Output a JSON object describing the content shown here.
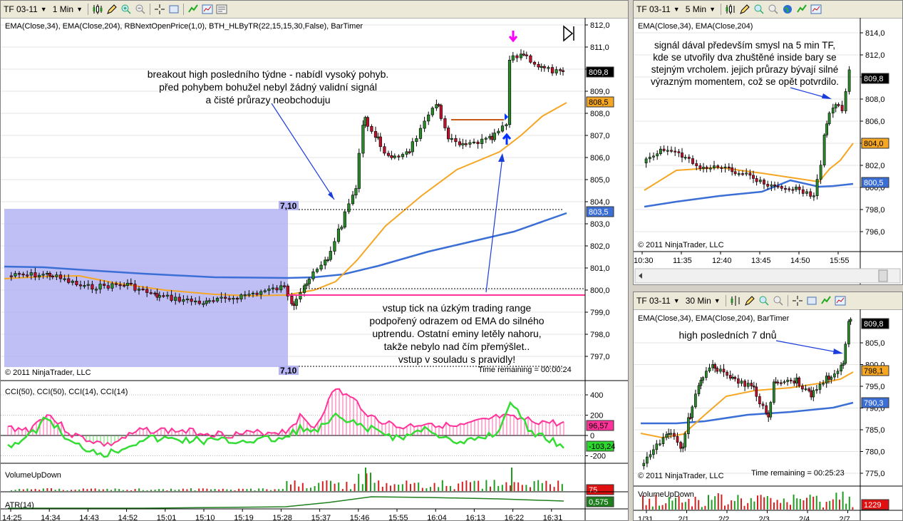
{
  "main": {
    "toolbar": {
      "instrument": "TF 03-11",
      "interval": "1 Min"
    },
    "indicators_label": "EMA(Close,34), EMA(Close,204), RBNextOpenPrice(1,0), BTH_HLByTR(22,15,15,30,False), BarTimer",
    "copyright": "© 2011 NinjaTrader, LLC",
    "time_remaining": "Time remaining = 00:00:24",
    "range_label_top": "7,10",
    "range_label_bottom": "7,10",
    "annotation_top": [
      "breakout high posledního týdne - nabídl vysoký pohyb.",
      "před pohybem bohužel nebyl žádný validní signál",
      "a čisté průrazy neobchoduju"
    ],
    "annotation_bottom": [
      "vstup tick na úzkým trading range",
      "podpořený odrazem od EMA do silného",
      "uptrendu. Ostatní eminy letěly nahoru,",
      "takže nebylo nad čím přemýšlet..",
      "vstup v souladu s pravidly!"
    ],
    "cci_label": "CCI(50), CCI(50), CCI(14), CCI(14)",
    "volume_label": "VolumeUpDown",
    "atr_label": "ATR(14)",
    "price_ticks": [
      "812,0",
      "811,0",
      "810,0",
      "809,0",
      "808,0",
      "807,0",
      "806,0",
      "805,0",
      "804,0",
      "803,0",
      "802,0",
      "801,0",
      "800,0",
      "799,0",
      "798,0",
      "797,0"
    ],
    "price_badges": {
      "last": "809,8",
      "ema34": "808,5",
      "ema204": "803,5"
    },
    "cci_ticks": [
      "400",
      "200",
      "0",
      "-200"
    ],
    "cci_badges": {
      "a": "96,57",
      "b": "-103,24"
    },
    "volume_badge": "75",
    "atr_badge": "0,575",
    "time_ticks": [
      "14:25",
      "14:34",
      "14:43",
      "14:52",
      "15:01",
      "15:10",
      "15:19",
      "15:28",
      "15:37",
      "15:46",
      "15:55",
      "16:04",
      "16:13",
      "16:22",
      "16:31"
    ],
    "colors": {
      "ema34": "#f5a623",
      "ema204": "#3b6fd6",
      "entry_line": "#ff3399",
      "range_box": "#b4b4f5",
      "cci_up": "#ff3399",
      "cci_down": "#33dd33"
    }
  },
  "tr": {
    "toolbar": {
      "instrument": "TF 03-11",
      "interval": "5 Min"
    },
    "indicators_label": "EMA(Close,34), EMA(Close,204)",
    "copyright": "© 2011 NinjaTrader, LLC",
    "annotation": [
      "signál dával především smysl na 5 min TF,",
      "kde se utvořily dva zhuštěné inside bary se",
      "stejným vrcholem. jejich průrazy bývají silné",
      "výrazným momentem, což se opět potvrdilo."
    ],
    "price_ticks": [
      "814,0",
      "812,0",
      "810,0",
      "808,0",
      "806,0",
      "804,0",
      "802,0",
      "800,0",
      "798,0",
      "796,0"
    ],
    "price_badges": {
      "last": "809,8",
      "ema34": "804,0",
      "ema204": "800,5"
    },
    "time_ticks": [
      "10:30",
      "11:35",
      "12:40",
      "13:45",
      "14:50",
      "15:55"
    ]
  },
  "br": {
    "toolbar": {
      "instrument": "TF 03-11",
      "interval": "30 Min"
    },
    "indicators_label": "EMA(Close,34), EMA(Close,204), BarTimer",
    "copyright": "© 2011 NinjaTrader, LLC",
    "time_remaining": "Time remaining = 00:25:23",
    "annotation": "high posledních 7 dnů",
    "volume_label": "VolumeUpDown",
    "price_ticks": [
      "805,0",
      "800,0",
      "795,0",
      "790,0",
      "785,0",
      "780,0",
      "775,0"
    ],
    "price_badges": {
      "last": "809,8",
      "ema34": "798,1",
      "ema204": "790,3"
    },
    "volume_badge": "1229",
    "time_ticks": [
      "1/31",
      "2/1",
      "2/2",
      "2/3",
      "2/4",
      "2/7"
    ]
  }
}
